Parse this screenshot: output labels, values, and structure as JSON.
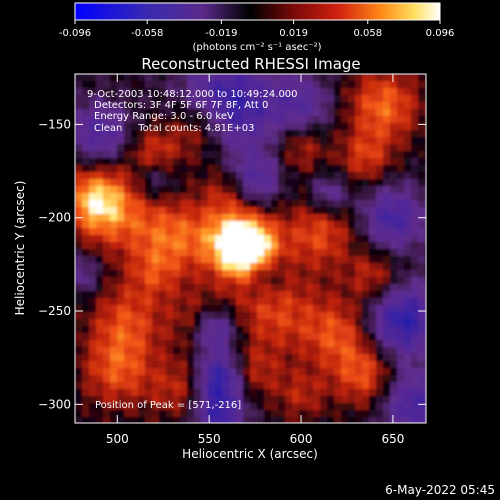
{
  "chart_data": {
    "type": "heatmap",
    "title": "Reconstructed RHESSI Image",
    "colorbar": {
      "tick_labels": [
        "-0.096",
        "-0.058",
        "-0.019",
        "0.019",
        "0.058",
        "0.096"
      ],
      "tick_values": [
        -0.096,
        -0.058,
        -0.019,
        0.019,
        0.058,
        0.096
      ],
      "range": [
        -0.096,
        0.096
      ],
      "unit_label": "(photons cm⁻² s⁻¹ asec⁻²)",
      "colormap": [
        "#0000ff",
        "#3a1aa0",
        "#5a2a8a",
        "#000000",
        "#6a1010",
        "#c01a10",
        "#ff4a10",
        "#ffa020",
        "#ffff90",
        "#ffffff"
      ]
    },
    "xlabel": "Heliocentric X (arcsec)",
    "ylabel": "Heliocentric Y (arcsec)",
    "xlim": [
      477,
      668
    ],
    "ylim": [
      -310,
      -123
    ],
    "x_ticks": [
      500,
      550,
      600,
      650
    ],
    "y_ticks": [
      -150,
      -200,
      -250,
      -300
    ],
    "annotations": [
      "9-Oct-2003 10:48:12.000 to 10:49:24.000",
      "Detectors: 3F 4F 5F 6F 7F 8F, Att 0",
      "Energy Range: 3.0 - 6.0 keV",
      "Clean     Total counts: 4.81E+03"
    ],
    "peak_label": "Position of Peak = [571,-216]",
    "peak": {
      "x": 571,
      "y": -216
    },
    "footer_date": "6-May-2022 05:45"
  }
}
